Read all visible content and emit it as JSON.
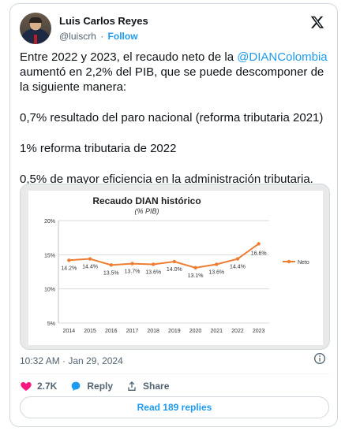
{
  "author": {
    "name": "Luis Carlos Reyes",
    "handle": "@luiscrh",
    "separator": "·",
    "follow_label": "Follow",
    "avatar_icon": "avatar-photo"
  },
  "brand_icon": "x-logo-icon",
  "tweet": {
    "lines": [
      "Entre 2022 y 2023, el recaudo neto de la ",
      "@DIANColombia",
      " aumentó en 2,2% del PIB, que se puede descomponer de la siguiente manera:",
      "0,7% resultado del paro nacional (reforma tributaria 2021)",
      "1% reforma tributaria de 2022",
      "0,5% de mayor eficiencia en la administración tributaria."
    ]
  },
  "chart_data": {
    "type": "line",
    "title": "Recaudo DIAN histórico",
    "subtitle": "(% PIB)",
    "categories": [
      "2014",
      "2015",
      "2016",
      "2017",
      "2018",
      "2019",
      "2020",
      "2021",
      "2022",
      "2023"
    ],
    "series": [
      {
        "name": "Neto",
        "values": [
          14.2,
          14.4,
          13.5,
          13.7,
          13.6,
          14.0,
          13.1,
          13.6,
          14.4,
          16.6
        ],
        "labels": [
          "14.2%",
          "14.4%",
          "13.5%",
          "13.7%",
          "13.6%",
          "14.0%",
          "13.1%",
          "13.6%",
          "14.4%",
          "16.6%"
        ],
        "color": "#ed7d31"
      }
    ],
    "yticks": [
      "5%",
      "10%",
      "15%",
      "20%"
    ],
    "ylim": [
      5,
      20
    ],
    "grid": true,
    "legend": "right"
  },
  "meta": {
    "timestamp": "10:32 AM · Jan 29, 2024"
  },
  "actions": {
    "likes": "2.7K",
    "reply_label": "Reply",
    "share_label": "Share"
  },
  "read_replies_label": "Read 189 replies",
  "colors": {
    "accent": "#1d9bf0",
    "like": "#f91880",
    "text": "#0f1419",
    "muted": "#536471",
    "series": "#ed7d31"
  }
}
